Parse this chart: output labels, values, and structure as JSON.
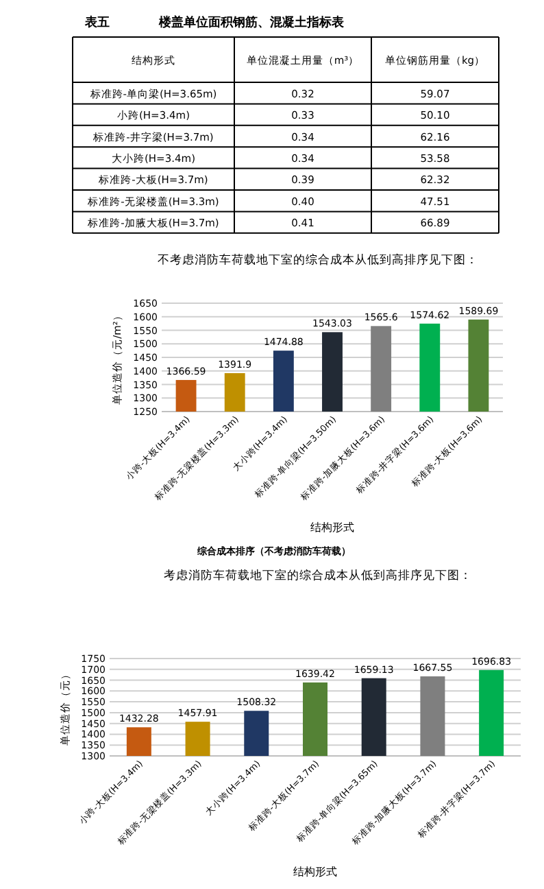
{
  "chart_data": [
    {
      "type": "other",
      "title": "表五　　　　楼盖单位面积钢筋、混凝土指标表",
      "annotations": [
        "结构形式",
        "单位混凝土用量（m³）",
        "单位钢筋用量（kg）",
        "标准跨-单向梁(H=3.65m)",
        "0.32",
        "59.07",
        "小跨(H=3.4m)",
        "0.33",
        "50.10",
        "标准跨-井字梁(H=3.7m)",
        "0.34",
        "62.16",
        "大小跨(H=3.4m)",
        "0.34",
        "53.58",
        "标准跨-大板(H=3.7m)",
        "0.39",
        "62.32",
        "标准跨-无梁楼盖(H=3.3m)",
        "0.40",
        "47.51",
        "标准跨-加腋大板(H=3.7m)",
        "0.41",
        "66.89"
      ]
    },
    {
      "type": "bar",
      "title": "不考虑消防车荷载地下室的综合成本从低到高排序见下图：",
      "xlabel": "结构形式",
      "ylabel": "单位造价（元/m²）",
      "categories": [
        "小跨-大板(H=3.4m)",
        "标准跨-无梁楼盖(H=3.3m)",
        "大小跨(H=3.4m)",
        "标准跨-单向梁(H=3.50m)",
        "标准跨-加腋大板(H=3.6m)",
        "标准跨-井字梁(H=3.6m)",
        "标准跨-大板(H=3.6m)"
      ],
      "values": [
        1366.59,
        1391.9,
        1474.88,
        1543.03,
        1565.6,
        1574.62,
        1589.69
      ],
      "colors": [
        "#c55a11",
        "#bf9000",
        "#203864",
        "#222a35",
        "#7f7f7f",
        "#00b050",
        "#548235"
      ],
      "ylim": [
        1250,
        1650
      ],
      "yticks": [
        1250,
        1300,
        1350,
        1400,
        1450,
        1500,
        1550,
        1600,
        1650
      ],
      "grid": "y",
      "data_labels": true,
      "annotations": [
        "综合成本排序（不考虑消防车荷载）"
      ]
    },
    {
      "type": "bar",
      "title": "考虑消防车荷载地下室的综合成本从低到高排序见下图：",
      "xlabel": "结构形式",
      "ylabel": "单位造价（元）",
      "categories": [
        "小跨-大板(H=3.4m)",
        "标准跨-无梁楼盖(H=3.3m)",
        "大小跨(H=3.4m)",
        "标准跨-大板(H=3.7m)",
        "标准跨-单向梁(H=3.65m)",
        "标准跨-加腋大板(H=3.7m)",
        "标准跨-井字梁(H=3.7m)"
      ],
      "values": [
        1432.28,
        1457.91,
        1508.32,
        1639.42,
        1659.13,
        1667.55,
        1696.83
      ],
      "colors": [
        "#c55a11",
        "#bf9000",
        "#203864",
        "#548235",
        "#222a35",
        "#7f7f7f",
        "#00b050"
      ],
      "ylim": [
        1300,
        1750
      ],
      "yticks": [
        1300,
        1350,
        1400,
        1450,
        1500,
        1550,
        1600,
        1650,
        1700,
        1750
      ],
      "grid": "y",
      "data_labels": true
    }
  ]
}
